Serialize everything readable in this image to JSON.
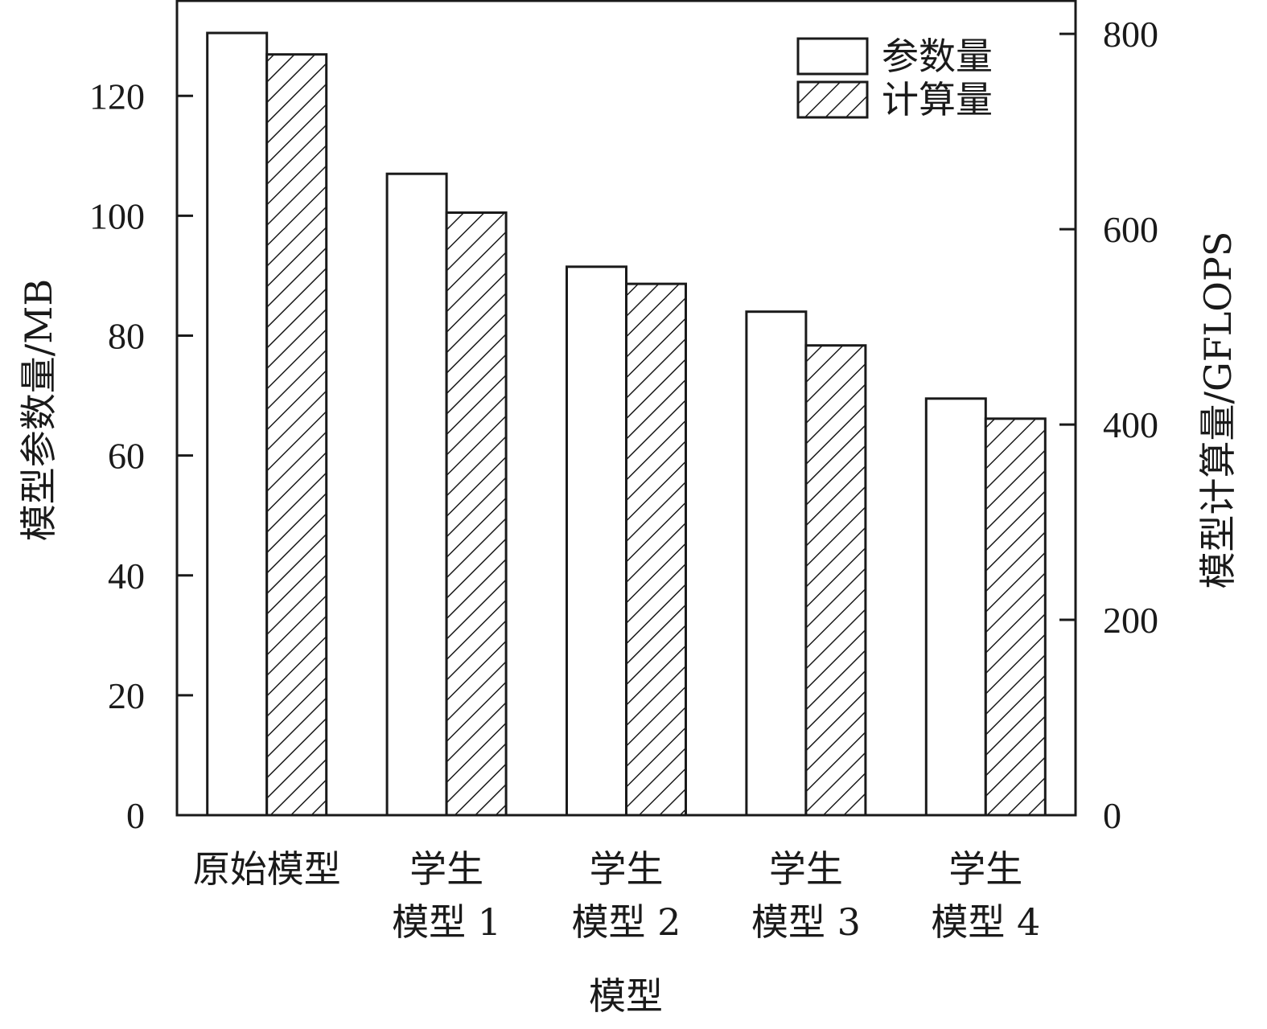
{
  "chart_data": {
    "type": "bar",
    "categories": [
      [
        "原始模型"
      ],
      [
        "学生",
        "模型 1"
      ],
      [
        "学生",
        "模型 2"
      ],
      [
        "学生",
        "模型 3"
      ],
      [
        "学生",
        "模型 4"
      ]
    ],
    "series": [
      {
        "name": "参数量",
        "axis": "left",
        "pattern": "none",
        "values": [
          130.5,
          107,
          91.5,
          84,
          69.5
        ]
      },
      {
        "name": "计算量",
        "axis": "right",
        "pattern": "hatch",
        "values": [
          779,
          617,
          544,
          481,
          406
        ]
      }
    ],
    "xlabel": "模型",
    "ylabel_left": "模型参数量/MB",
    "ylabel_right": "模型计算量/GFLOPS",
    "ylim_left": [
      0,
      136
    ],
    "ylim_right": [
      0,
      834.7
    ],
    "yticks_left": [
      "0",
      "20",
      "40",
      "60",
      "80",
      "100",
      "120"
    ],
    "yticks_right": [
      "0",
      "200",
      "400",
      "600",
      "800"
    ],
    "grid": false,
    "legend_position": "top-right",
    "colors": {
      "axis": "#1a1a1a",
      "bar_fill": "#ffffff",
      "hatch": "#1a1a1a"
    }
  }
}
